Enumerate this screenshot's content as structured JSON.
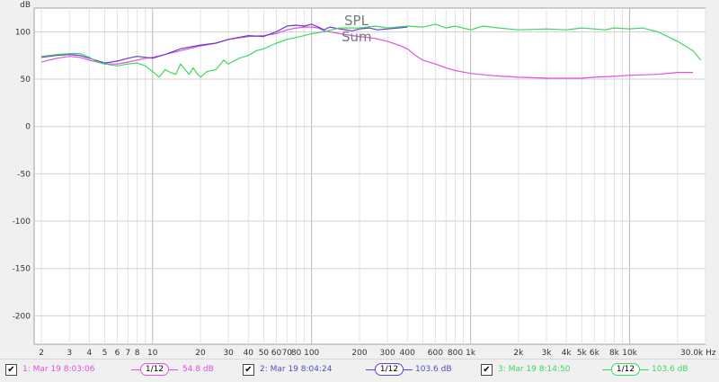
{
  "chart_data": {
    "type": "line",
    "title": "SPL",
    "subtitle": "Sum",
    "ylabel": "dB",
    "xlabel": "",
    "xscale": "log",
    "xlim": [
      1.8,
      30000
    ],
    "ylim": [
      -230,
      125
    ],
    "grid": true,
    "y_ticks": [
      100,
      50,
      0,
      -50,
      -100,
      -150,
      -200
    ],
    "y_tick_labels": [
      "100",
      "50",
      "0",
      "-50",
      "-100",
      "-150",
      "-200"
    ],
    "x_ticks": [
      2,
      3,
      4,
      5,
      6,
      7,
      8,
      10,
      20,
      30,
      40,
      50,
      60,
      70,
      80,
      100,
      200,
      300,
      400,
      600,
      800,
      1000,
      2000,
      3000,
      4000,
      5000,
      6000,
      8000,
      10000,
      30000
    ],
    "x_tick_labels": [
      "2",
      "3",
      "4",
      "5",
      "6",
      "7",
      "8",
      "10",
      "20",
      "30",
      "40",
      "50",
      "60",
      "70",
      "80",
      "100",
      "200",
      "300",
      "400",
      "600",
      "800",
      "1k",
      "2k",
      "3k",
      "4k",
      "5k",
      "6k",
      "8k",
      "10k",
      "30.0k Hz"
    ],
    "series": [
      {
        "name": "1: Mar 19 8:03:06",
        "color": "#e050e0",
        "x": [
          2,
          2.5,
          3,
          3.5,
          4,
          5,
          6,
          7,
          8,
          9,
          10,
          12,
          15,
          20,
          25,
          30,
          40,
          50,
          60,
          70,
          80,
          90,
          100,
          110,
          120,
          150,
          180,
          200,
          250,
          300,
          350,
          400,
          450,
          500,
          600,
          700,
          800,
          1000,
          1300,
          1600,
          2000,
          3000,
          4000,
          5000,
          6000,
          8000,
          10000,
          15000,
          20000,
          25000
        ],
        "values": [
          68,
          72,
          74,
          73,
          70,
          66,
          66,
          68,
          70,
          72,
          73,
          76,
          80,
          85,
          88,
          92,
          95,
          96,
          98,
          102,
          104,
          105,
          105,
          104,
          101,
          98,
          96,
          95,
          93,
          90,
          86,
          82,
          75,
          70,
          66,
          62,
          59,
          56,
          54,
          53,
          52,
          51,
          51,
          51,
          52,
          53,
          54,
          55,
          57,
          57
        ]
      },
      {
        "name": "2: Mar 19 8:04:24",
        "color": "#6a3cc8",
        "x": [
          2,
          2.5,
          3,
          3.5,
          4,
          5,
          6,
          7,
          8,
          9,
          10,
          12,
          15,
          20,
          25,
          30,
          40,
          50,
          60,
          70,
          80,
          90,
          100,
          110,
          120,
          130,
          150,
          180,
          200,
          230,
          260,
          300,
          350,
          400
        ],
        "values": [
          73,
          75,
          76,
          75,
          72,
          67,
          69,
          72,
          74,
          73,
          72,
          76,
          82,
          86,
          88,
          92,
          96,
          95,
          100,
          106,
          107,
          106,
          108,
          105,
          102,
          105,
          103,
          101,
          103,
          104,
          102,
          103,
          104,
          105
        ]
      },
      {
        "name": "3: Mar 19 8:14:50",
        "color": "#3cd860",
        "x": [
          2,
          2.5,
          3,
          3.5,
          4,
          4.5,
          5,
          6,
          7,
          8,
          9,
          10,
          11,
          12,
          13,
          14,
          15,
          16,
          17,
          18,
          19,
          20,
          22,
          25,
          28,
          30,
          35,
          40,
          45,
          50,
          60,
          70,
          80,
          90,
          100,
          120,
          150,
          200,
          250,
          300,
          400,
          500,
          600,
          700,
          800,
          1000,
          1200,
          1500,
          2000,
          3000,
          4000,
          5000,
          6000,
          7000,
          8000,
          10000,
          12000,
          15000,
          20000,
          25000,
          28000
        ],
        "values": [
          74,
          76,
          77,
          77,
          73,
          68,
          66,
          64,
          66,
          67,
          64,
          58,
          52,
          60,
          57,
          55,
          66,
          60,
          55,
          62,
          56,
          52,
          58,
          60,
          70,
          66,
          72,
          75,
          80,
          82,
          88,
          92,
          94,
          96,
          98,
          100,
          104,
          104,
          106,
          104,
          106,
          105,
          108,
          104,
          106,
          102,
          106,
          104,
          102,
          103,
          102,
          104,
          103,
          102,
          104,
          103,
          104,
          100,
          90,
          80,
          70
        ]
      }
    ]
  },
  "legend": [
    {
      "checked": "✔",
      "label": "1: Mar 19 8:03:06",
      "smoothing": "1/12",
      "value": "54.8 dB",
      "color": "#e050e0"
    },
    {
      "checked": "✔",
      "label": "2: Mar 19 8:04:24",
      "smoothing": "1/12",
      "value": "103.6 dB",
      "color": "#6a3cc8"
    },
    {
      "checked": "✔",
      "label": "3: Mar 19 8:14:50",
      "smoothing": "1/12",
      "value": "103.6 dB",
      "color": "#3cd860"
    }
  ]
}
